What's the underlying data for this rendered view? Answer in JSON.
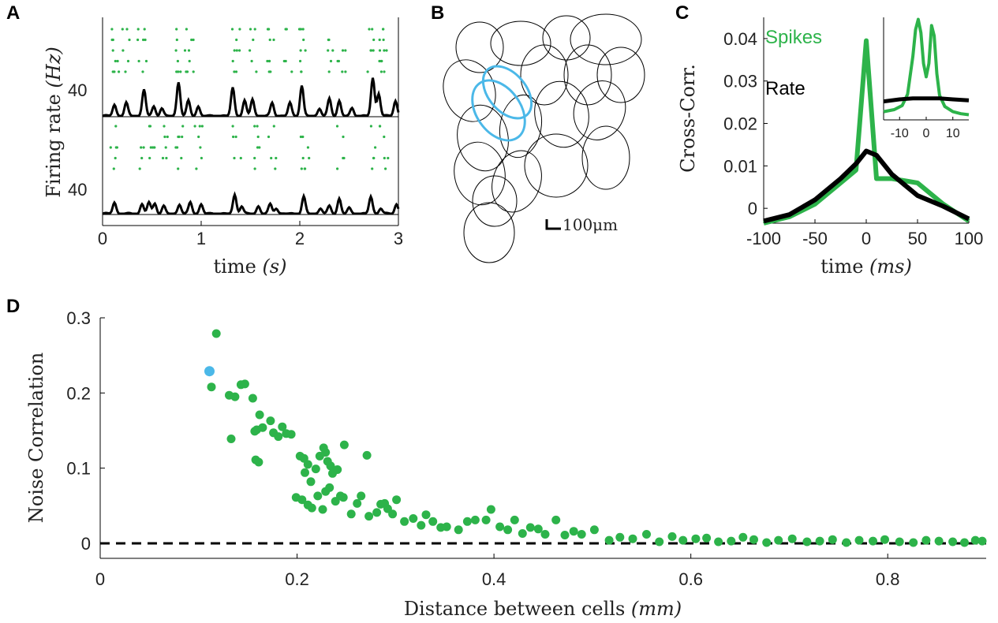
{
  "colors": {
    "green": "#2db34a",
    "blue": "#4bb8e8",
    "black": "#000000"
  },
  "panels": {
    "A": {
      "letter": "A",
      "ylabel_main": "Firing rate ",
      "ylabel_unit": "(Hz)",
      "xlabel_main": "time ",
      "xlabel_unit": "(s)",
      "rate_tick_top": "40",
      "rate_tick_bottom": "40",
      "xticks": [
        "0",
        "1",
        "2",
        "3"
      ],
      "xrange": [
        0,
        3
      ]
    },
    "B": {
      "letter": "B",
      "scale_label": "100μm"
    },
    "C": {
      "letter": "C",
      "ylabel": "Cross-Corr.",
      "xlabel_main": "time ",
      "xlabel_unit": "(ms)",
      "legend_spikes": "Spikes",
      "legend_rate": "Rate",
      "yticks": [
        "0",
        "0.01",
        "0.02",
        "0.03",
        "0.04"
      ],
      "xticks": [
        "-100",
        "-50",
        "0",
        "50",
        "100"
      ],
      "inset_xticks": [
        "-10",
        "0",
        "10"
      ]
    },
    "D": {
      "letter": "D",
      "ylabel": "Noise Correlation",
      "xlabel_main": "Distance between cells ",
      "xlabel_unit": "(mm)",
      "yticks": [
        "0",
        "0.1",
        "0.2",
        "0.3"
      ],
      "xticks": [
        "0",
        "0.2",
        "0.4",
        "0.6",
        "0.8"
      ]
    }
  },
  "chart_data": [
    {
      "panel": "C",
      "type": "line",
      "x": [
        -100,
        -75,
        -50,
        -25,
        -10,
        0,
        10,
        25,
        50,
        75,
        100
      ],
      "xlim": [
        -100,
        100
      ],
      "ylim": [
        -0.0035,
        0.045
      ],
      "series": [
        {
          "name": "Spikes",
          "values": [
            -0.0035,
            -0.002,
            0.001,
            0.006,
            0.009,
            0.0395,
            0.007,
            0.007,
            0.006,
            0.001,
            -0.003
          ]
        },
        {
          "name": "Rate",
          "values": [
            -0.003,
            -0.0015,
            0.002,
            0.007,
            0.0105,
            0.0135,
            0.0125,
            0.008,
            0.003,
            0.0005,
            -0.0025
          ]
        }
      ],
      "inset": {
        "type": "line",
        "xlim": [
          -16,
          16
        ],
        "series": [
          {
            "name": "Spikes",
            "x": [
              -16,
              -12,
              -9,
              -7,
              -5,
              -4,
              -3,
              -2,
              -1,
              0,
              1,
              2,
              3,
              4,
              5,
              7,
              10,
              13,
              16
            ],
            "values": [
              0.08,
              0.1,
              0.14,
              0.25,
              0.62,
              0.88,
              0.98,
              0.85,
              0.55,
              0.42,
              0.55,
              0.92,
              0.82,
              0.45,
              0.24,
              0.13,
              0.08,
              0.06,
              0.05
            ]
          },
          {
            "name": "Rate",
            "x": [
              -16,
              -10,
              -5,
              0,
              5,
              10,
              16
            ],
            "values": [
              0.18,
              0.2,
              0.21,
              0.21,
              0.21,
              0.2,
              0.19
            ]
          }
        ]
      }
    },
    {
      "panel": "D",
      "type": "scatter",
      "xlabel": "Distance between cells (mm)",
      "ylabel": "Noise Correlation",
      "xlim": [
        0,
        0.9
      ],
      "ylim": [
        -0.02,
        0.3
      ],
      "reference_line_y": 0,
      "highlight": {
        "x": 0.111,
        "y": 0.229
      },
      "points": [
        [
          0.118,
          0.279
        ],
        [
          0.113,
          0.208
        ],
        [
          0.131,
          0.197
        ],
        [
          0.137,
          0.195
        ],
        [
          0.143,
          0.211
        ],
        [
          0.147,
          0.212
        ],
        [
          0.133,
          0.139
        ],
        [
          0.155,
          0.193
        ],
        [
          0.159,
          0.151
        ],
        [
          0.157,
          0.149
        ],
        [
          0.162,
          0.171
        ],
        [
          0.165,
          0.154
        ],
        [
          0.158,
          0.111
        ],
        [
          0.161,
          0.108
        ],
        [
          0.173,
          0.163
        ],
        [
          0.176,
          0.147
        ],
        [
          0.181,
          0.142
        ],
        [
          0.185,
          0.155
        ],
        [
          0.189,
          0.146
        ],
        [
          0.194,
          0.145
        ],
        [
          0.203,
          0.116
        ],
        [
          0.207,
          0.113
        ],
        [
          0.208,
          0.094
        ],
        [
          0.211,
          0.105
        ],
        [
          0.214,
          0.082
        ],
        [
          0.219,
          0.099
        ],
        [
          0.223,
          0.116
        ],
        [
          0.227,
          0.127
        ],
        [
          0.229,
          0.121
        ],
        [
          0.231,
          0.109
        ],
        [
          0.234,
          0.103
        ],
        [
          0.236,
          0.093
        ],
        [
          0.241,
          0.098
        ],
        [
          0.248,
          0.131
        ],
        [
          0.199,
          0.061
        ],
        [
          0.205,
          0.058
        ],
        [
          0.211,
          0.051
        ],
        [
          0.215,
          0.047
        ],
        [
          0.221,
          0.063
        ],
        [
          0.226,
          0.045
        ],
        [
          0.229,
          0.069
        ],
        [
          0.233,
          0.074
        ],
        [
          0.239,
          0.056
        ],
        [
          0.244,
          0.063
        ],
        [
          0.247,
          0.061
        ],
        [
          0.255,
          0.039
        ],
        [
          0.261,
          0.053
        ],
        [
          0.265,
          0.063
        ],
        [
          0.271,
          0.117
        ],
        [
          0.273,
          0.036
        ],
        [
          0.281,
          0.041
        ],
        [
          0.285,
          0.052
        ],
        [
          0.289,
          0.053
        ],
        [
          0.292,
          0.046
        ],
        [
          0.297,
          0.039
        ],
        [
          0.301,
          0.058
        ],
        [
          0.309,
          0.029
        ],
        [
          0.318,
          0.033
        ],
        [
          0.326,
          0.024
        ],
        [
          0.331,
          0.038
        ],
        [
          0.338,
          0.029
        ],
        [
          0.346,
          0.021
        ],
        [
          0.352,
          0.022
        ],
        [
          0.364,
          0.018
        ],
        [
          0.373,
          0.029
        ],
        [
          0.381,
          0.031
        ],
        [
          0.392,
          0.031
        ],
        [
          0.397,
          0.045
        ],
        [
          0.406,
          0.022
        ],
        [
          0.414,
          0.018
        ],
        [
          0.421,
          0.031
        ],
        [
          0.429,
          0.013
        ],
        [
          0.437,
          0.021
        ],
        [
          0.445,
          0.019
        ],
        [
          0.452,
          0.012
        ],
        [
          0.463,
          0.031
        ],
        [
          0.472,
          0.011
        ],
        [
          0.481,
          0.016
        ],
        [
          0.489,
          0.012
        ],
        [
          0.502,
          0.018
        ],
        [
          0.517,
          0.004
        ],
        [
          0.528,
          0.008
        ],
        [
          0.541,
          0.006
        ],
        [
          0.555,
          0.012
        ],
        [
          0.568,
          0.002
        ],
        [
          0.581,
          0.009
        ],
        [
          0.592,
          0.004
        ],
        [
          0.605,
          0.006
        ],
        [
          0.616,
          0.007
        ],
        [
          0.628,
          0.002
        ],
        [
          0.641,
          0.003
        ],
        [
          0.653,
          0.008
        ],
        [
          0.664,
          0.005
        ],
        [
          0.677,
          0.001
        ],
        [
          0.689,
          0.004
        ],
        [
          0.703,
          0.006
        ],
        [
          0.718,
          0.002
        ],
        [
          0.731,
          0.003
        ],
        [
          0.744,
          0.005
        ],
        [
          0.758,
          0.001
        ],
        [
          0.771,
          0.004
        ],
        [
          0.785,
          0.003
        ],
        [
          0.797,
          0.005
        ],
        [
          0.812,
          0.002
        ],
        [
          0.826,
          0.001
        ],
        [
          0.839,
          0.004
        ],
        [
          0.852,
          0.003
        ],
        [
          0.866,
          0.002
        ],
        [
          0.878,
          0.001
        ],
        [
          0.889,
          0.004
        ],
        [
          0.896,
          0.003
        ]
      ]
    }
  ]
}
